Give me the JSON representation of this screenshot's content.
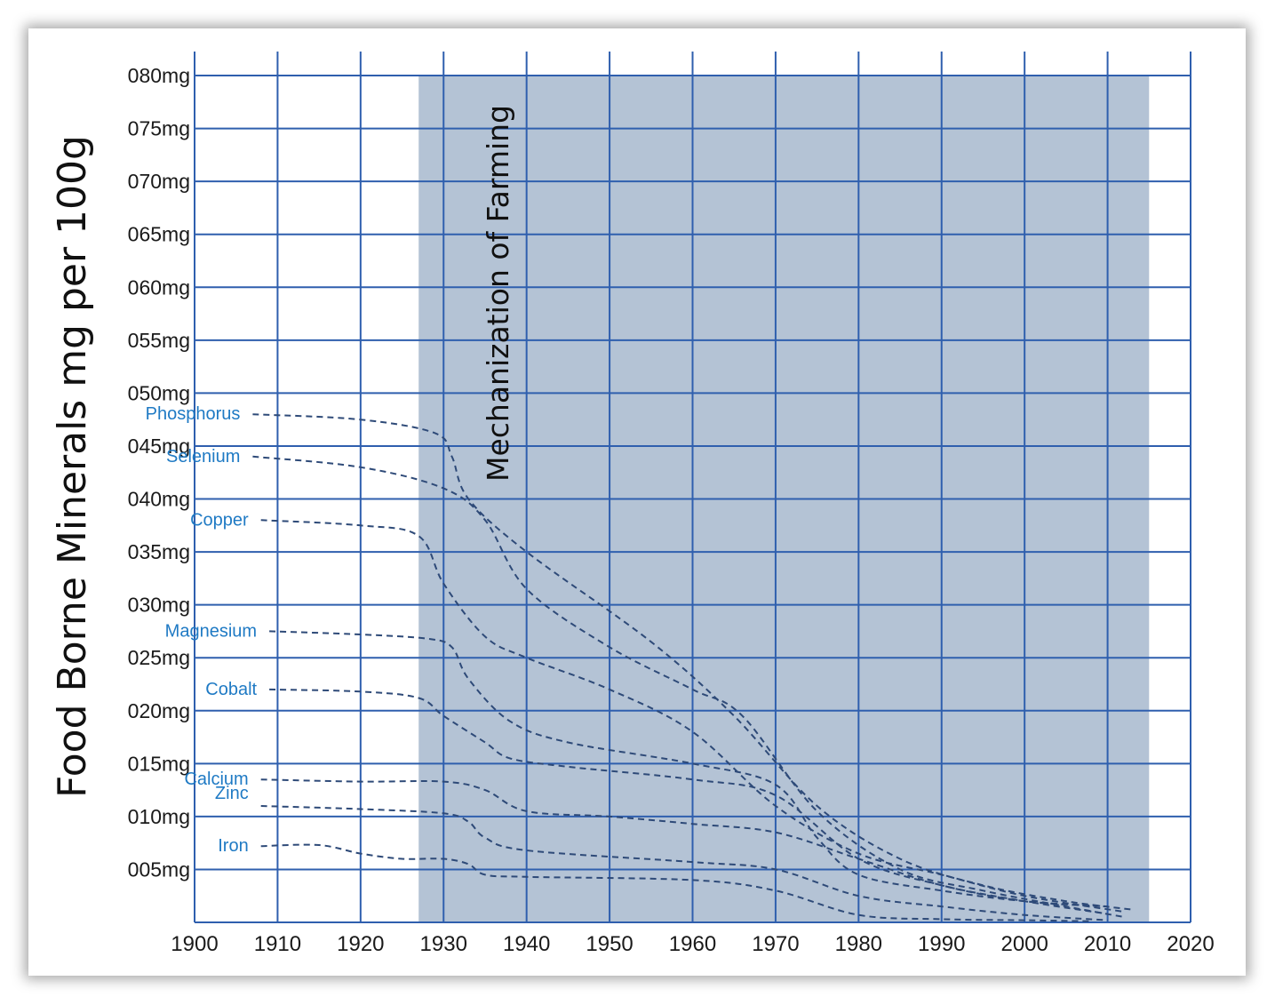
{
  "chart_data": {
    "type": "line",
    "ylabel": "Food Borne Minerals mg per 100g",
    "annotation": "Mechanization of Farming",
    "shaded_range": [
      1927,
      2015
    ],
    "xlim": [
      1900,
      2020
    ],
    "ylim": [
      0,
      80
    ],
    "x_ticks": [
      "1900",
      "1910",
      "1920",
      "1930",
      "1940",
      "1950",
      "1960",
      "1970",
      "1980",
      "1990",
      "2000",
      "2010",
      "2020"
    ],
    "y_ticks": [
      "005mg",
      "010mg",
      "015mg",
      "020mg",
      "025mg",
      "030mg",
      "035mg",
      "040mg",
      "045mg",
      "050mg",
      "055mg",
      "060mg",
      "065mg",
      "070mg",
      "075mg",
      "080mg"
    ],
    "series_style": "dashed",
    "colors": {
      "series": "#2e4a78",
      "grid": "#2f5fae",
      "band": "#b4c3d5",
      "label": "#1f7ac4"
    },
    "series": [
      {
        "name": "Phosphorus",
        "x": [
          1907,
          1920,
          1929,
          1931,
          1933,
          1940,
          1955,
          1965,
          1975,
          1985,
          1995,
          2005,
          2013
        ],
        "y": [
          48.0,
          47.5,
          46.2,
          44.0,
          40.0,
          35.0,
          26.5,
          19.5,
          11.0,
          6.0,
          3.5,
          2.0,
          1.2
        ]
      },
      {
        "name": "Selenium",
        "x": [
          1907,
          1920,
          1930,
          1935,
          1940,
          1950,
          1960,
          1966,
          1975,
          1985,
          1995,
          2005,
          2012
        ],
        "y": [
          44.0,
          43.0,
          41.0,
          38.0,
          31.5,
          26.0,
          22.0,
          19.5,
          10.5,
          5.0,
          3.0,
          1.5,
          0.5
        ]
      },
      {
        "name": "Copper",
        "x": [
          1908,
          1920,
          1927,
          1930,
          1935,
          1940,
          1950,
          1960,
          1970,
          1980,
          1990,
          2000,
          2012
        ],
        "y": [
          38.0,
          37.5,
          36.5,
          32.0,
          27.0,
          25.0,
          22.0,
          18.0,
          11.0,
          6.5,
          4.5,
          2.5,
          1.0
        ]
      },
      {
        "name": "Magnesium",
        "x": [
          1909,
          1920,
          1928,
          1931,
          1933,
          1938,
          1945,
          1960,
          1970,
          1975,
          1980,
          1990,
          2000,
          2010
        ],
        "y": [
          27.5,
          27.2,
          26.8,
          26.0,
          23.0,
          19.0,
          17.0,
          15.0,
          13.0,
          8.0,
          4.5,
          3.0,
          2.0,
          1.5
        ]
      },
      {
        "name": "Cobalt",
        "x": [
          1909,
          1920,
          1927,
          1930,
          1935,
          1938,
          1945,
          1960,
          1970,
          1980,
          1990,
          2000,
          2010
        ],
        "y": [
          22.0,
          21.8,
          21.2,
          19.5,
          17.0,
          15.5,
          14.7,
          13.5,
          12.0,
          6.0,
          3.5,
          2.0,
          1.5
        ]
      },
      {
        "name": "Calcium",
        "x": [
          1908,
          1920,
          1930,
          1935,
          1940,
          1950,
          1960,
          1970,
          1980,
          1990,
          2000,
          2010
        ],
        "y": [
          13.5,
          13.3,
          13.3,
          12.5,
          10.5,
          10.0,
          9.3,
          8.5,
          6.0,
          3.5,
          2.0,
          0.8
        ]
      },
      {
        "name": "Zinc",
        "x": [
          1908,
          1920,
          1930,
          1933,
          1935,
          1940,
          1960,
          1970,
          1980,
          1990,
          2000,
          2010
        ],
        "y": [
          11.0,
          10.7,
          10.3,
          9.5,
          8.0,
          6.8,
          5.7,
          5.0,
          2.5,
          1.5,
          0.7,
          0.2
        ]
      },
      {
        "name": "Iron",
        "x": [
          1908,
          1915,
          1920,
          1925,
          1930,
          1933,
          1935,
          1940,
          1960,
          1970,
          1980,
          1990,
          2000,
          2008
        ],
        "y": [
          7.2,
          7.3,
          6.5,
          6.0,
          6.0,
          5.5,
          4.5,
          4.3,
          4.0,
          3.0,
          0.7,
          0.3,
          0.2,
          0.1
        ]
      }
    ]
  }
}
